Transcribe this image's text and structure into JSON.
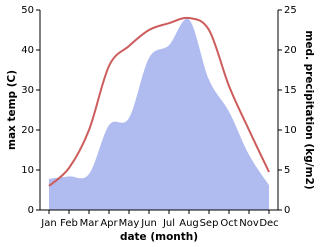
{
  "chart_data": {
    "type": "line",
    "x_label": "date (month)",
    "y_label": "max temp (C)",
    "y2_label": "med. precipitation (kg/m2)",
    "categories": [
      "Jan",
      "Feb",
      "Mar",
      "Apr",
      "May",
      "Jun",
      "Jul",
      "Aug",
      "Sep",
      "Oct",
      "Nov",
      "Dec"
    ],
    "series": [
      {
        "name": "max temp",
        "color": "#cd5c5c",
        "values": [
          6,
          10.5,
          20,
          36,
          41,
          45,
          46.7,
          48,
          45,
          31,
          20,
          9.5
        ]
      },
      {
        "name": "precipitation",
        "color": "#b0bbf0",
        "axis": "y2",
        "values": [
          3.9,
          4.2,
          4.5,
          10.6,
          11.5,
          19,
          20.6,
          23.8,
          16.3,
          12.3,
          6.9,
          3.1
        ]
      }
    ],
    "ylim": [
      0,
      50
    ],
    "yticks": [
      0,
      10,
      20,
      30,
      40,
      50
    ],
    "y2lim": [
      0,
      25
    ],
    "y2ticks": [
      0,
      5,
      10,
      15,
      20,
      25
    ]
  }
}
